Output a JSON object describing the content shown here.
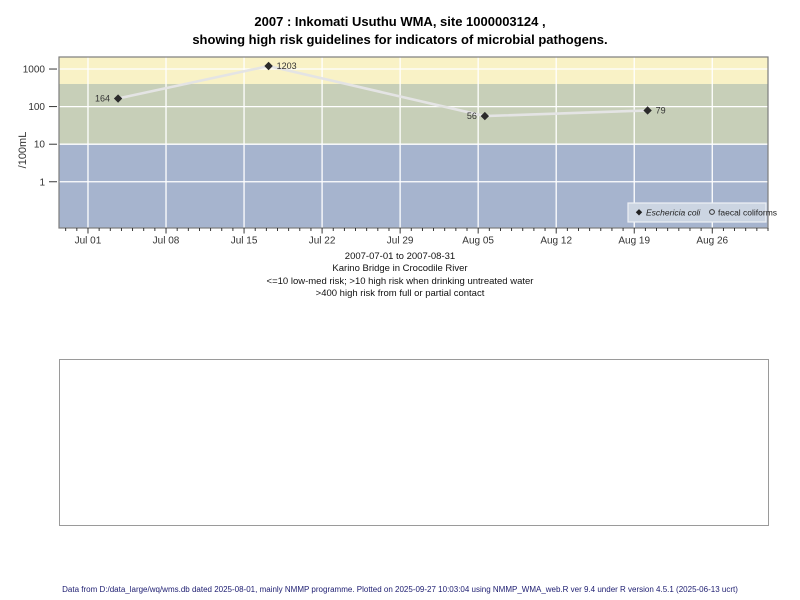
{
  "title": {
    "line1": "2007 : Inkomati Usuthu WMA, site 1000003124 ,",
    "line2": "showing high risk guidelines for indicators of microbial pathogens."
  },
  "chart_data": {
    "type": "line",
    "y_axis": {
      "label": "/100mL",
      "scale": "log10",
      "ticks": [
        1,
        10,
        100,
        1000
      ],
      "log10_range": [
        -1.23,
        3.32
      ]
    },
    "x_axis": {
      "start_date": "2007-07-01",
      "end_date": "2007-08-31",
      "tick_labels": [
        "Jul 01",
        "Jul 08",
        "Jul 15",
        "Jul 22",
        "Jul 29",
        "Aug 05",
        "Aug 12",
        "Aug 19",
        "Aug 26"
      ],
      "week_tick_days": [
        0,
        7,
        14,
        21,
        28,
        35,
        42,
        49,
        56
      ],
      "range_days": [
        -2.6,
        61
      ],
      "minor_tick_every_days": 1
    },
    "bands": [
      {
        "name": "high risk from full or partial contact (>400)",
        "min": 400,
        "max": null,
        "color": "#f9f2c6"
      },
      {
        "name": "high risk when drinking untreated water (10-400)",
        "min": 10,
        "max": 400,
        "color": "#c7cfb8"
      },
      {
        "name": "low-med risk (<=10)",
        "min": null,
        "max": 10,
        "color": "#a6b4ce"
      }
    ],
    "grid_color": "#ffffff",
    "line_color": "#e4e4e4",
    "point_color": "#2b2b2b",
    "series": [
      {
        "name": "Eschericia coli",
        "marker": "filled-diamond",
        "points": [
          {
            "day_offset": 2.7,
            "value": 164,
            "label": "164",
            "label_side": "left"
          },
          {
            "day_offset": 16.2,
            "value": 1203,
            "label": "1203",
            "label_side": "right"
          },
          {
            "day_offset": 35.6,
            "value": 56,
            "label": "56",
            "label_side": "left"
          },
          {
            "day_offset": 50.2,
            "value": 79,
            "label": "79",
            "label_side": "right"
          }
        ]
      },
      {
        "name": "faecal coliforms",
        "marker": "open-circle",
        "points": []
      }
    ],
    "legend": {
      "position": "bottom-right",
      "background": "#ccd5e2",
      "entries": [
        {
          "marker": "filled-diamond",
          "label": "Eschericia coli",
          "italic": true
        },
        {
          "marker": "open-circle",
          "label": "faecal coliforms",
          "italic": false
        }
      ]
    }
  },
  "caption": {
    "line1": "2007-07-01 to 2007-08-31",
    "line2": "Karino Bridge in Crocodile River",
    "line3": "<=10 low-med risk; >10 high risk when drinking untreated water",
    "line4": ">400 high risk from full or partial contact"
  },
  "footer": {
    "text": "Data from D:/data_large/wq/wms.db dated 2025-08-01, mainly NMMP programme. Plotted on 2025-09-27 10:03:04 using NMMP_WMA_web.R ver 9.4 under R version 4.5.1 (2025-06-13 ucrt)"
  }
}
